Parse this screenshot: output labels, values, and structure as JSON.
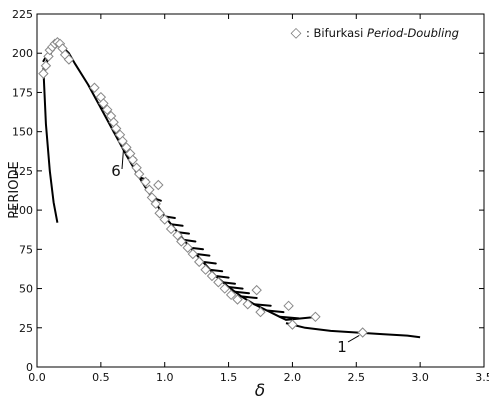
{
  "chart_data": {
    "type": "line",
    "xlabel": "δ",
    "ylabel": "PERIODE",
    "xlim": [
      0,
      3.5
    ],
    "ylim": [
      0,
      225
    ],
    "x_ticks": [
      0,
      0.5,
      1,
      1.5,
      2,
      2.5,
      3,
      3.5
    ],
    "x_tick_labels": [
      "0.0",
      "0.5",
      "1.0",
      "1.5",
      "2.0",
      "2.5",
      "3.0",
      "3.5"
    ],
    "y_ticks": [
      0,
      25,
      50,
      75,
      100,
      125,
      150,
      175,
      200,
      225
    ],
    "y_tick_labels": [
      "0",
      "25",
      "50",
      "75",
      "100",
      "125",
      "150",
      "175",
      "200",
      "225"
    ],
    "grid": false,
    "legend": {
      "position": "top-right",
      "marker": "◇",
      "label_prefix": ": Bifurkasi ",
      "label_italic": "Period-Doubling"
    },
    "annotations": [
      {
        "text": "6",
        "x": 0.7,
        "y": 140
      },
      {
        "text": "1",
        "x": 2.5,
        "y": 22
      }
    ],
    "curves": [
      {
        "x": [
          0.05,
          0.07,
          0.1,
          0.13,
          0.16
        ],
        "y": [
          190,
          155,
          125,
          105,
          92
        ]
      },
      {
        "x": [
          0.05,
          0.08,
          0.12,
          0.16,
          0.2,
          0.25,
          0.3,
          0.4,
          0.5,
          0.6,
          0.7,
          0.8,
          0.9,
          1.0,
          1.1,
          1.2,
          1.3,
          1.4,
          1.5,
          1.6,
          1.7,
          1.8,
          1.9,
          1.95
        ],
        "y": [
          185,
          195,
          202,
          205,
          204,
          200,
          193,
          180,
          165,
          150,
          135,
          121,
          108,
          96,
          86,
          76,
          67,
          58,
          51,
          45,
          40,
          36,
          32,
          30
        ]
      },
      {
        "x": [
          1.95,
          2.1,
          2.3,
          2.5,
          2.7,
          2.9,
          3.0
        ],
        "y": [
          28,
          25,
          23,
          22,
          21,
          20,
          19
        ]
      }
    ],
    "branches": [
      {
        "x": [
          0.05,
          0.1,
          0.16
        ],
        "y": [
          190,
          200,
          205
        ]
      },
      {
        "x": [
          0.05,
          0.1,
          0.16
        ],
        "y": [
          195,
          202,
          207
        ]
      },
      {
        "x": [
          0.5,
          0.57
        ],
        "y": [
          165,
          163
        ]
      },
      {
        "x": [
          0.6,
          0.67
        ],
        "y": [
          150,
          148
        ]
      },
      {
        "x": [
          0.7,
          0.77
        ],
        "y": [
          135,
          133
        ]
      },
      {
        "x": [
          0.8,
          0.87
        ],
        "y": [
          121,
          119
        ]
      },
      {
        "x": [
          0.9,
          0.97
        ],
        "y": [
          108,
          106
        ]
      },
      {
        "x": [
          1.0,
          1.08
        ],
        "y": [
          96,
          95
        ]
      },
      {
        "x": [
          1.05,
          1.14
        ],
        "y": [
          91,
          90
        ]
      },
      {
        "x": [
          1.1,
          1.19
        ],
        "y": [
          86,
          85
        ]
      },
      {
        "x": [
          1.15,
          1.24
        ],
        "y": [
          81,
          80
        ]
      },
      {
        "x": [
          1.2,
          1.3
        ],
        "y": [
          76,
          75
        ]
      },
      {
        "x": [
          1.25,
          1.35
        ],
        "y": [
          72,
          71
        ]
      },
      {
        "x": [
          1.3,
          1.4
        ],
        "y": [
          67,
          66
        ]
      },
      {
        "x": [
          1.35,
          1.45
        ],
        "y": [
          62,
          61
        ]
      },
      {
        "x": [
          1.4,
          1.5
        ],
        "y": [
          58,
          57
        ]
      },
      {
        "x": [
          1.45,
          1.55
        ],
        "y": [
          54,
          53
        ]
      },
      {
        "x": [
          1.5,
          1.61
        ],
        "y": [
          51,
          50
        ]
      },
      {
        "x": [
          1.55,
          1.66
        ],
        "y": [
          48,
          47
        ]
      },
      {
        "x": [
          1.6,
          1.72
        ],
        "y": [
          45,
          44
        ]
      },
      {
        "x": [
          1.7,
          1.83
        ],
        "y": [
          40,
          39
        ]
      },
      {
        "x": [
          1.8,
          1.93
        ],
        "y": [
          36,
          35
        ]
      },
      {
        "x": [
          1.9,
          2.05
        ],
        "y": [
          32,
          31
        ]
      },
      {
        "x": [
          1.95,
          2.2
        ],
        "y": [
          30,
          32
        ]
      }
    ],
    "markers": {
      "name": "Bifurkasi Period-Doubling",
      "symbol": "diamond",
      "points": [
        {
          "x": 0.05,
          "y": 187
        },
        {
          "x": 0.07,
          "y": 192
        },
        {
          "x": 0.09,
          "y": 198
        },
        {
          "x": 0.1,
          "y": 202
        },
        {
          "x": 0.12,
          "y": 204
        },
        {
          "x": 0.14,
          "y": 206
        },
        {
          "x": 0.16,
          "y": 207
        },
        {
          "x": 0.18,
          "y": 206
        },
        {
          "x": 0.2,
          "y": 203
        },
        {
          "x": 0.22,
          "y": 199
        },
        {
          "x": 0.25,
          "y": 196
        },
        {
          "x": 0.45,
          "y": 178
        },
        {
          "x": 0.5,
          "y": 172
        },
        {
          "x": 0.52,
          "y": 168
        },
        {
          "x": 0.55,
          "y": 164
        },
        {
          "x": 0.58,
          "y": 160
        },
        {
          "x": 0.6,
          "y": 156
        },
        {
          "x": 0.62,
          "y": 152
        },
        {
          "x": 0.65,
          "y": 148
        },
        {
          "x": 0.67,
          "y": 144
        },
        {
          "x": 0.7,
          "y": 140
        },
        {
          "x": 0.73,
          "y": 136
        },
        {
          "x": 0.75,
          "y": 132
        },
        {
          "x": 0.78,
          "y": 127
        },
        {
          "x": 0.8,
          "y": 123
        },
        {
          "x": 0.85,
          "y": 118
        },
        {
          "x": 0.88,
          "y": 113
        },
        {
          "x": 0.9,
          "y": 108
        },
        {
          "x": 0.93,
          "y": 104
        },
        {
          "x": 0.95,
          "y": 116
        },
        {
          "x": 0.96,
          "y": 98
        },
        {
          "x": 1.0,
          "y": 94
        },
        {
          "x": 1.05,
          "y": 88
        },
        {
          "x": 1.1,
          "y": 84
        },
        {
          "x": 1.13,
          "y": 80
        },
        {
          "x": 1.18,
          "y": 76
        },
        {
          "x": 1.22,
          "y": 72
        },
        {
          "x": 1.27,
          "y": 67
        },
        {
          "x": 1.32,
          "y": 62
        },
        {
          "x": 1.37,
          "y": 58
        },
        {
          "x": 1.42,
          "y": 54
        },
        {
          "x": 1.47,
          "y": 50
        },
        {
          "x": 1.52,
          "y": 46
        },
        {
          "x": 1.57,
          "y": 43
        },
        {
          "x": 1.65,
          "y": 40
        },
        {
          "x": 1.72,
          "y": 49
        },
        {
          "x": 1.75,
          "y": 35
        },
        {
          "x": 1.97,
          "y": 39
        },
        {
          "x": 2.0,
          "y": 27
        },
        {
          "x": 2.18,
          "y": 32
        },
        {
          "x": 2.55,
          "y": 22
        }
      ]
    }
  }
}
